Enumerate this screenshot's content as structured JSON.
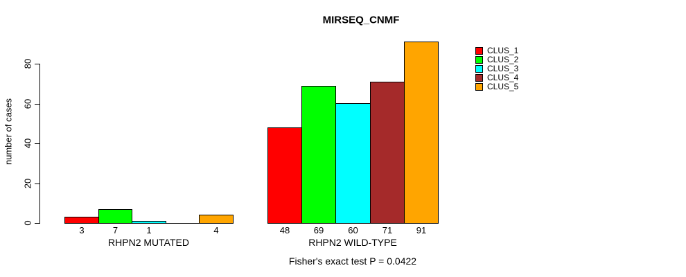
{
  "title": "MIRSEQ_CNMF",
  "subtitle": "Fisher's exact test P = 0.0422",
  "ylabel": "number of cases",
  "colors": {
    "background": "#ffffff",
    "axis": "#000000",
    "bar_border": "#000000"
  },
  "legend": {
    "position": "right",
    "items": [
      {
        "label": "CLUS_1",
        "color": "#ff0000"
      },
      {
        "label": "CLUS_2",
        "color": "#00ff00"
      },
      {
        "label": "CLUS_3",
        "color": "#00ffff"
      },
      {
        "label": "CLUS_4",
        "color": "#a52a2a"
      },
      {
        "label": "CLUS_5",
        "color": "#ffa500"
      }
    ]
  },
  "chart_data": {
    "type": "bar",
    "title": "MIRSEQ_CNMF",
    "xlabel": "",
    "ylabel": "number of cases",
    "ylim": [
      0,
      92
    ],
    "yticks": [
      0,
      20,
      40,
      60,
      80
    ],
    "grid": false,
    "legend_position": "right",
    "series_names": [
      "CLUS_1",
      "CLUS_2",
      "CLUS_3",
      "CLUS_4",
      "CLUS_5"
    ],
    "series_colors": [
      "#ff0000",
      "#00ff00",
      "#00ffff",
      "#a52a2a",
      "#ffa500"
    ],
    "groups": [
      {
        "label": "RHPN2 MUTATED",
        "values": [
          3,
          7,
          1,
          0,
          4
        ],
        "bar_labels": [
          "3",
          "7",
          "1",
          "",
          "4"
        ]
      },
      {
        "label": "RHPN2 WILD-TYPE",
        "values": [
          48,
          69,
          60,
          71,
          91
        ],
        "bar_labels": [
          "48",
          "69",
          "60",
          "71",
          "91"
        ]
      }
    ],
    "annotation": "Fisher's exact test P = 0.0422"
  }
}
